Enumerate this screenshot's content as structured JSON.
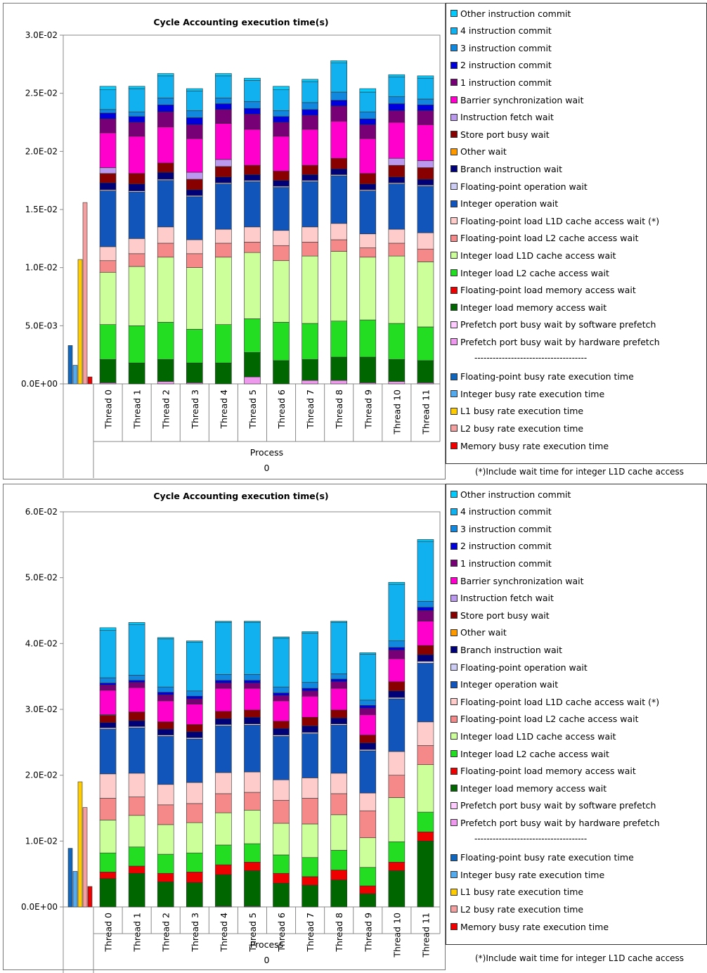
{
  "legend_wait": [
    {
      "label": "Other instruction commit",
      "color": "#00CCFF"
    },
    {
      "label": "4 instruction commit",
      "color": "#11B0EE"
    },
    {
      "label": "3 instruction commit",
      "color": "#1188DD"
    },
    {
      "label": "2 instruction commit",
      "color": "#0000DD"
    },
    {
      "label": "1 instruction commit",
      "color": "#770077"
    },
    {
      "label": "Barrier synchronization wait",
      "color": "#FF00CC"
    },
    {
      "label": "Instruction fetch wait",
      "color": "#BB99EE"
    },
    {
      "label": "Store port busy wait",
      "color": "#880000"
    },
    {
      "label": "Other wait",
      "color": "#FF9900"
    },
    {
      "label": "Branch instruction wait",
      "color": "#000077"
    },
    {
      "label": "Floating-point operation wait",
      "color": "#CCCCF5"
    },
    {
      "label": "Integer operation wait",
      "color": "#1155BB"
    },
    {
      "label": "Floating-point load L1D cache access wait (*)",
      "color": "#FFCCCC"
    },
    {
      "label": "Floating-point load L2 cache access wait",
      "color": "#F58888"
    },
    {
      "label": "Integer load L1D cache access wait",
      "color": "#CCFF99"
    },
    {
      "label": "Integer load L2 cache access wait",
      "color": "#22DD22"
    },
    {
      "label": "Floating-point load memory access wait",
      "color": "#EE0000"
    },
    {
      "label": "Integer load memory access wait",
      "color": "#006600"
    },
    {
      "label": "Prefetch port busy wait by software prefetch",
      "color": "#FFCCFF"
    },
    {
      "label": "Prefetch port busy wait by hardware prefetch",
      "color": "#EE99EE"
    }
  ],
  "legend_separator": "-------------------------------------",
  "legend_busy": [
    {
      "label": "Floating-point busy rate execution time",
      "color": "#1166BB"
    },
    {
      "label": "Integer busy rate execution time",
      "color": "#55AAEE"
    },
    {
      "label": "L1 busy rate execution time",
      "color": "#FFCC00"
    },
    {
      "label": "L2 busy rate execution time",
      "color": "#F5A0A0"
    },
    {
      "label": "Memory busy rate execution time",
      "color": "#EE0000"
    }
  ],
  "footnote": "(*)Include wait time for integer L1D cache access",
  "chart_data": [
    {
      "type": "bar",
      "stacked": true,
      "title": "Cycle Accounting execution time(s)",
      "xlabel": "Process",
      "group_label": "0",
      "categories": [
        "Thread 0",
        "Thread 1",
        "Thread 2",
        "Thread 3",
        "Thread 4",
        "Thread 5",
        "Thread 6",
        "Thread 7",
        "Thread 8",
        "Thread 9",
        "Thread 10",
        "Thread 11"
      ],
      "ylim": [
        0,
        0.03
      ],
      "yticks": [
        "0.0E+00",
        "5.0E-03",
        "1.0E-02",
        "1.5E-02",
        "2.0E-02",
        "2.5E-02",
        "3.0E-02"
      ],
      "grid": false,
      "busy_bars": [
        0.0033,
        0.0016,
        0.0107,
        0.0156,
        0.0006
      ],
      "stacks": [
        [
          0.0001,
          0,
          0.002,
          0,
          0.003,
          0.0045,
          0.001,
          0.0012,
          0.0048,
          0.0001,
          0.0006,
          0,
          0.0008,
          0.0005,
          0.003,
          0.0012,
          0.0005,
          0.0003,
          0.0017,
          0.0003
        ],
        [
          0,
          0,
          0.0018,
          0,
          0.0032,
          0.0051,
          0.0011,
          0.0013,
          0.004,
          0.0001,
          0.0006,
          0,
          0.0009,
          0,
          0.0032,
          0.0012,
          0.0005,
          0.0004,
          0.002,
          0.0002
        ],
        [
          0.0002,
          0,
          0.0019,
          0,
          0.0032,
          0.0056,
          0.0012,
          0.0014,
          0.004,
          0.0001,
          0.0006,
          0,
          0.0008,
          0,
          0.0031,
          0.0013,
          0.0006,
          0.0006,
          0.0019,
          0.0002
        ],
        [
          0.0001,
          0,
          0.0017,
          0,
          0.0029,
          0.0053,
          0.0012,
          0.0012,
          0.0037,
          0.0001,
          0.0005,
          0,
          0.0009,
          0.0006,
          0.0029,
          0.0012,
          0.0006,
          0.0006,
          0.0017,
          0.0002
        ],
        [
          0,
          0,
          0.0018,
          0,
          0.0033,
          0.0058,
          0.0012,
          0.0012,
          0.0039,
          0.0001,
          0.0005,
          0,
          0.0009,
          0.0006,
          0.0031,
          0.0012,
          0.0005,
          0.0005,
          0.0019,
          0.0002
        ],
        [
          0.0006,
          0,
          0.0021,
          0,
          0.0029,
          0.0057,
          0.0009,
          0.0013,
          0.0039,
          0.0001,
          0.0005,
          0,
          0.0008,
          0,
          0.0031,
          0.0013,
          0.0005,
          0.0006,
          0.0018,
          0.0002
        ],
        [
          0,
          0,
          0.002,
          0,
          0.0033,
          0.0053,
          0.0013,
          0.0013,
          0.0037,
          0.0001,
          0.0005,
          0,
          0.0008,
          0,
          0.003,
          0.0012,
          0.0005,
          0.0005,
          0.0018,
          0.0003
        ],
        [
          0.0003,
          0,
          0.0018,
          0,
          0.0031,
          0.0058,
          0.0012,
          0.0013,
          0.0039,
          0.0001,
          0.0005,
          0,
          0.0008,
          0,
          0.0031,
          0.0012,
          0.0005,
          0.0006,
          0.0018,
          0.0002
        ],
        [
          0.0003,
          0,
          0.002,
          0,
          0.0031,
          0.006,
          0.001,
          0.0014,
          0.0041,
          0.0001,
          0.0005,
          0,
          0.0009,
          0,
          0.0032,
          0.0013,
          0.0005,
          0.0007,
          0.0025,
          0.0002
        ],
        [
          0.0001,
          0,
          0.0022,
          0,
          0.0032,
          0.0054,
          0.0008,
          0.0012,
          0.0037,
          0.0001,
          0.0005,
          0,
          0.0009,
          0,
          0.003,
          0.0012,
          0.0005,
          0.0006,
          0.0017,
          0.0003
        ],
        [
          0.0002,
          0,
          0.0019,
          0,
          0.0031,
          0.0058,
          0.0011,
          0.0012,
          0.0039,
          0.0001,
          0.0005,
          0,
          0.001,
          0.0006,
          0.0031,
          0.001,
          0.0006,
          0.0006,
          0.0017,
          0.0002
        ],
        [
          0.0001,
          0,
          0.0019,
          0,
          0.0029,
          0.0056,
          0.0011,
          0.0014,
          0.004,
          0.0001,
          0.0005,
          0,
          0.001,
          0.0006,
          0.0031,
          0.0012,
          0.0005,
          0.0005,
          0.0018,
          0.0002
        ]
      ]
    },
    {
      "type": "bar",
      "stacked": true,
      "title": "Cycle Accounting execution time(s)",
      "xlabel": "Process",
      "group_label": "0",
      "categories": [
        "Thread 0",
        "Thread 1",
        "Thread 2",
        "Thread 3",
        "Thread 4",
        "Thread 5",
        "Thread 6",
        "Thread 7",
        "Thread 8",
        "Thread 9",
        "Thread 10",
        "Thread 11"
      ],
      "ylim": [
        0,
        0.06
      ],
      "yticks": [
        "0.0E+00",
        "1.0E-02",
        "2.0E-02",
        "3.0E-02",
        "4.0E-02",
        "5.0E-02",
        "6.0E-02"
      ],
      "grid": false,
      "busy_bars": [
        0.0089,
        0.0054,
        0.019,
        0.0151,
        0.0031
      ],
      "stacks": [
        [
          0,
          0,
          0.0043,
          0.001,
          0.0029,
          0.005,
          0.0033,
          0.0037,
          0.0068,
          0.0002,
          0.0008,
          0,
          0.0011,
          0.0001,
          0.0037,
          0.0008,
          0.0003,
          0.0008,
          0.0072,
          0.0004
        ],
        [
          0,
          0,
          0.0051,
          0.0011,
          0.0029,
          0.0048,
          0.0028,
          0.0036,
          0.0069,
          0.0002,
          0.0009,
          0,
          0.0013,
          0,
          0.0037,
          0.0008,
          0.0003,
          0.0008,
          0.0077,
          0.0003
        ],
        [
          0,
          0,
          0.0038,
          0.0013,
          0.0029,
          0.0045,
          0.003,
          0.0031,
          0.0073,
          0.0002,
          0.0009,
          0,
          0.0011,
          0,
          0.0032,
          0.0009,
          0.0004,
          0.0008,
          0.0073,
          0.0002
        ],
        [
          0,
          0,
          0.0037,
          0.0016,
          0.0029,
          0.0046,
          0.0029,
          0.0032,
          0.0066,
          0.0002,
          0.0009,
          0,
          0.0011,
          0,
          0.0031,
          0.0008,
          0.0004,
          0.0008,
          0.0074,
          0.0002
        ],
        [
          0.0001,
          0,
          0.0048,
          0.0015,
          0.003,
          0.0049,
          0.0029,
          0.0032,
          0.0071,
          0.0002,
          0.0009,
          0,
          0.0011,
          0,
          0.0035,
          0.0008,
          0.0004,
          0.0009,
          0.0079,
          0.0002
        ],
        [
          0.0001,
          0,
          0.0054,
          0.0013,
          0.0028,
          0.0051,
          0.0027,
          0.0031,
          0.0071,
          0.0002,
          0.001,
          0,
          0.0011,
          0,
          0.0033,
          0.0008,
          0.0004,
          0.0009,
          0.0079,
          0.0002
        ],
        [
          0,
          0,
          0.0036,
          0.0015,
          0.0028,
          0.0048,
          0.0035,
          0.0031,
          0.0066,
          0.0002,
          0.001,
          0,
          0.0011,
          0,
          0.0031,
          0.0008,
          0.0004,
          0.0009,
          0.0074,
          0.0002
        ],
        [
          0,
          0,
          0.0033,
          0.0013,
          0.0029,
          0.0051,
          0.0039,
          0.0031,
          0.0067,
          0.0002,
          0.001,
          0,
          0.0013,
          0,
          0.0032,
          0.0008,
          0.0004,
          0.0009,
          0.0075,
          0.0002
        ],
        [
          0,
          0,
          0.0041,
          0.0015,
          0.003,
          0.0054,
          0.0032,
          0.0031,
          0.0073,
          0.0002,
          0.0009,
          0,
          0.0012,
          0,
          0.0033,
          0.001,
          0.0004,
          0.0008,
          0.0078,
          0.0002
        ],
        [
          0,
          0,
          0.002,
          0.0012,
          0.0028,
          0.0045,
          0.0041,
          0.0027,
          0.0064,
          0.0002,
          0.001,
          0,
          0.0012,
          0,
          0.0031,
          0.001,
          0.0004,
          0.0008,
          0.007,
          0.0002
        ],
        [
          0,
          0,
          0.0055,
          0.0013,
          0.0031,
          0.0067,
          0.0034,
          0.0036,
          0.008,
          0.0002,
          0.001,
          0,
          0.0014,
          0,
          0.0035,
          0.0013,
          0.0004,
          0.001,
          0.0086,
          0.0003
        ],
        [
          0,
          0,
          0.01,
          0.0014,
          0.003,
          0.0072,
          0.0029,
          0.0036,
          0.0089,
          0.0003,
          0.001,
          0,
          0.0014,
          0,
          0.0037,
          0.0016,
          0.0005,
          0.0009,
          0.0091,
          0.0003
        ]
      ]
    }
  ]
}
